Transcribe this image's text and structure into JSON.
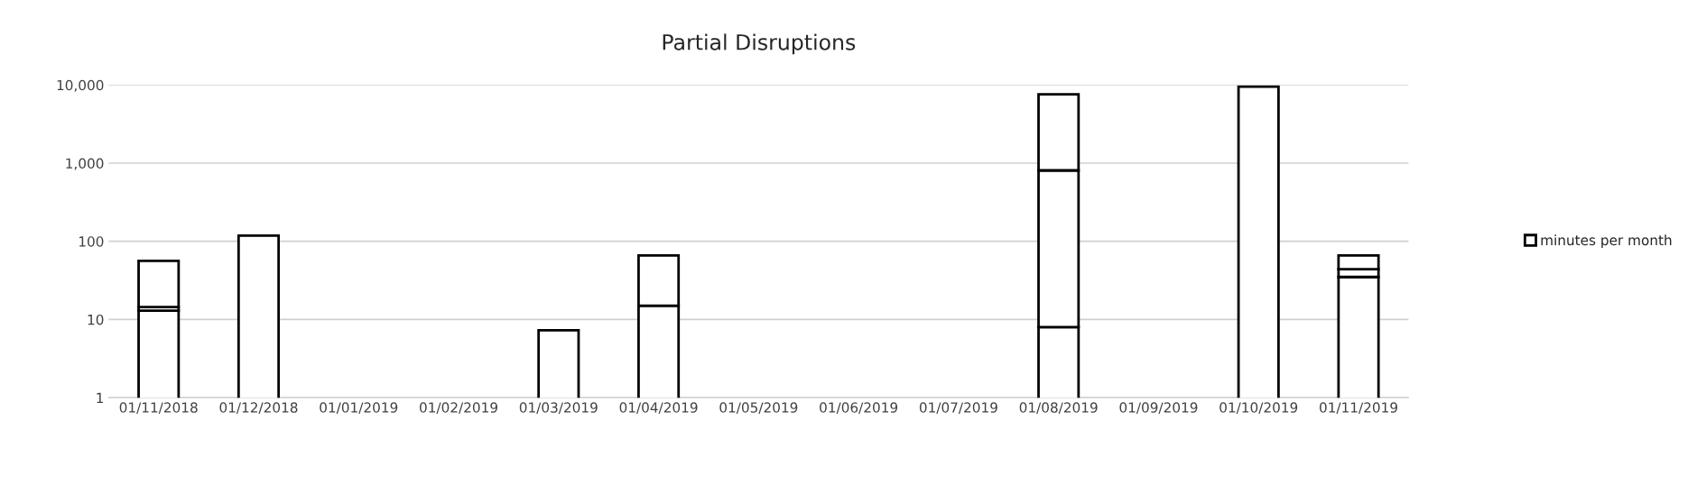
{
  "chart_data": {
    "type": "bar",
    "title": "Partial Disruptions",
    "stacked": true,
    "log": "y",
    "grid": "y",
    "legend": "right",
    "categories": [
      "01/11/2018",
      "01/12/2018",
      "01/01/2019",
      "01/02/2019",
      "01/03/2019",
      "01/04/2019",
      "01/05/2019",
      "01/06/2019",
      "01/07/2019",
      "01/08/2019",
      "01/09/2019",
      "01/10/2019",
      "01/11/2019"
    ],
    "series": [
      {
        "name": "minutes per month",
        "color": "#ffffff",
        "values": [
          13,
          118,
          null,
          null,
          7.3,
          15,
          null,
          null,
          null,
          8,
          null,
          9500,
          35
        ]
      },
      {
        "color": "#ffffff",
        "values": [
          1.4,
          null,
          null,
          null,
          null,
          51,
          null,
          null,
          null,
          800,
          null,
          null,
          9
        ]
      },
      {
        "color": "#ffffff",
        "values": [
          42,
          null,
          null,
          null,
          null,
          null,
          null,
          null,
          null,
          6800,
          null,
          null,
          22
        ]
      }
    ],
    "ylim": [
      1,
      10000
    ],
    "yticks": [
      1,
      10,
      100,
      {
        "value": 1000,
        "label": "1,000"
      },
      {
        "value": 10000,
        "label": "10,000"
      }
    ]
  }
}
